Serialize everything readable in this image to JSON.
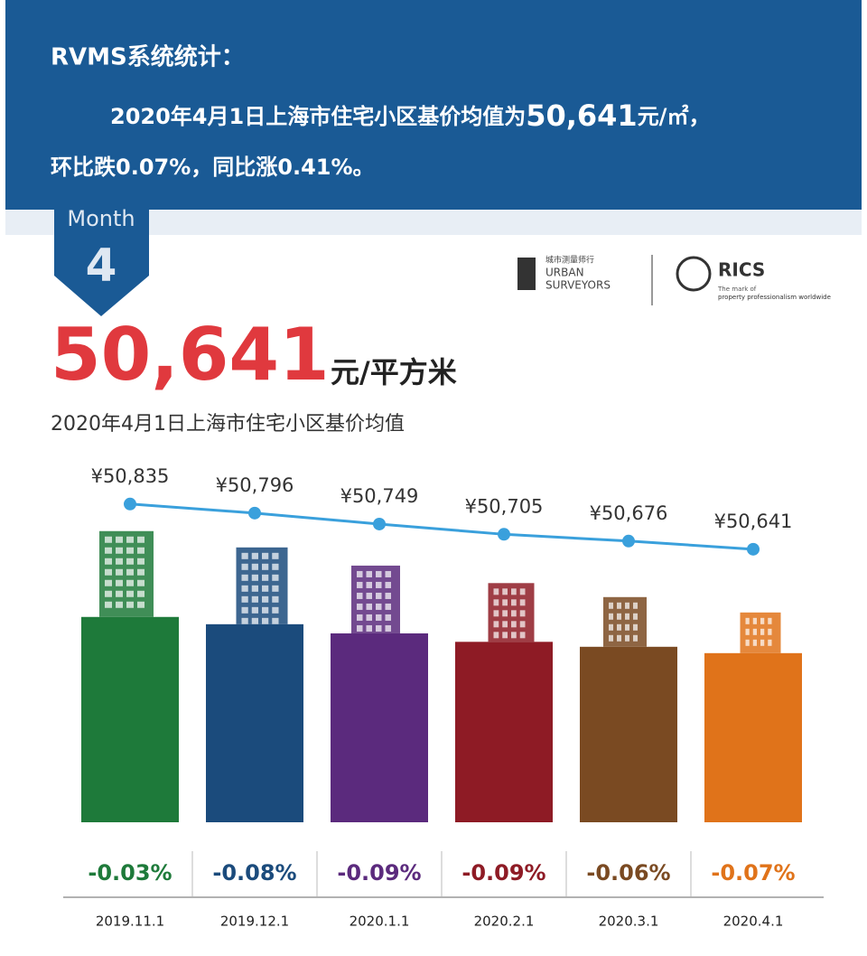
{
  "header": {
    "title": "RVMS系统统计：",
    "line1_prefix": "2020年4月1日上海市住宅小区基价均值为",
    "line1_value": "50,641",
    "line1_suffix": "元/㎡，",
    "line2": "环比跌0.07%，同比涨0.41%。"
  },
  "badge": {
    "label": "Month",
    "number": "4"
  },
  "logos": {
    "urban_cn": "城市测量师行",
    "urban_en1": "URBAN",
    "urban_en2": "SURVEYORS",
    "rics": "RICS",
    "rics_tag1": "The mark of",
    "rics_tag2": "property professionalism worldwide"
  },
  "headline": {
    "value": "50,641",
    "unit": "元/平方米",
    "caption": "2020年4月1日上海市住宅小区基价均值"
  },
  "chart_data": {
    "type": "line",
    "categories": [
      "2019.11.1",
      "2019.12.1",
      "2020.1.1",
      "2020.2.1",
      "2020.3.1",
      "2020.4.1"
    ],
    "values": [
      50835,
      50796,
      50749,
      50705,
      50676,
      50641
    ],
    "value_labels": [
      "¥50,835",
      "¥50,796",
      "¥50,749",
      "¥50,705",
      "¥50,676",
      "¥50,641"
    ],
    "color": "#3aa0dc",
    "ylim": [
      50400,
      50900
    ],
    "bar_colors": [
      "#1e7a3a",
      "#1b4b7c",
      "#5b2a7d",
      "#8e1b25",
      "#7a4a22",
      "#e0731a"
    ],
    "change_labels": [
      "-0.03%",
      "-0.08%",
      "-0.09%",
      "-0.09%",
      "-0.06%",
      "-0.07%"
    ]
  }
}
